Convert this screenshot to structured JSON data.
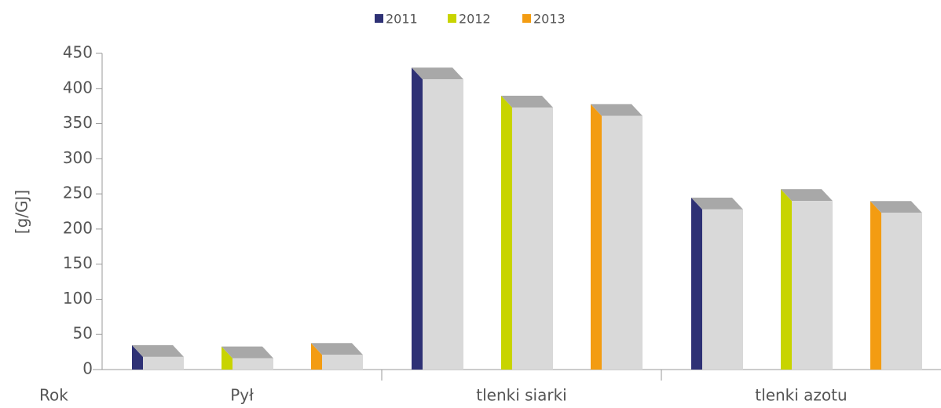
{
  "chart_data": {
    "type": "bar3d",
    "y_axis_label": "[g/GJ]",
    "x_axis_label": "Rok",
    "categories": [
      "Pył",
      "tlenki siarki",
      "tlenki azotu"
    ],
    "series": [
      {
        "name": "2011",
        "color": "#2e3175",
        "values": [
          18,
          413,
          228
        ]
      },
      {
        "name": "2012",
        "color": "#c8d400",
        "values": [
          16,
          373,
          240
        ]
      },
      {
        "name": "2013",
        "color": "#f39c12",
        "values": [
          21,
          361,
          223
        ]
      }
    ],
    "ylim": [
      0,
      450
    ],
    "yticks": [
      0,
      50,
      100,
      150,
      200,
      250,
      300,
      350,
      400,
      450
    ],
    "legend": "top"
  }
}
